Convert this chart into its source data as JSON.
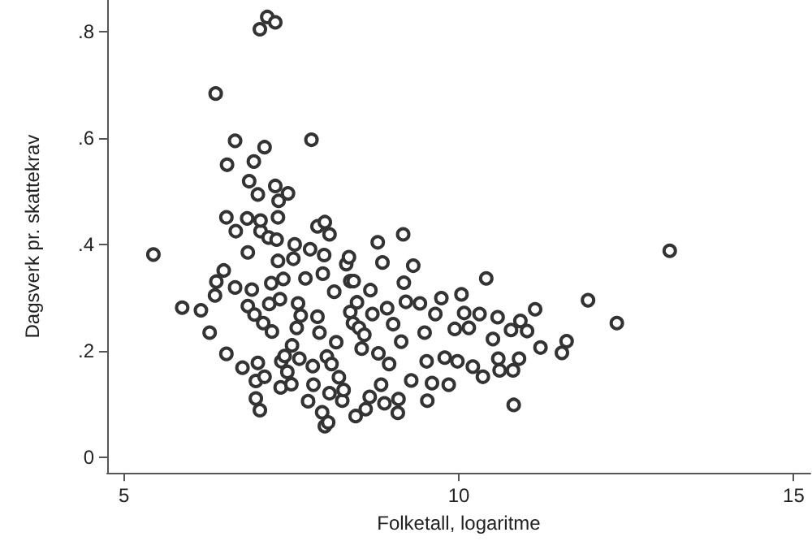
{
  "chart_data": {
    "type": "scatter",
    "xlabel": "Folketall, logaritme",
    "ylabel": "Dagsverk pr. skattekrav",
    "marker": "circle",
    "grid": false,
    "xlim": [
      4.75,
      15.25
    ],
    "xticks": [
      5,
      10,
      15
    ],
    "ylim": [
      -0.03,
      0.86
    ],
    "yticks": [
      {
        "value": 0,
        "label": "0"
      },
      {
        "value": 0.2,
        "label": ".2"
      },
      {
        "value": 0.4,
        "label": ".4"
      },
      {
        "value": 0.6,
        "label": ".6"
      },
      {
        "value": 0.8,
        "label": ".8"
      }
    ],
    "series": [
      {
        "color": "#333333",
        "x": [
          5.44,
          5.87,
          6.15,
          6.28,
          6.36,
          6.38,
          6.37,
          6.49,
          6.53,
          6.54,
          6.53,
          6.66,
          6.67,
          6.66,
          6.77,
          6.84,
          6.85,
          6.87,
          6.85,
          6.91,
          6.94,
          6.95,
          6.97,
          6.97,
          7.0,
          7.0,
          7.03,
          7.04,
          7.03,
          7.04,
          7.08,
          7.1,
          7.1,
          7.14,
          7.16,
          7.17,
          7.2,
          7.21,
          7.26,
          7.26,
          7.28,
          7.3,
          7.31,
          7.3,
          7.33,
          7.34,
          7.35,
          7.38,
          7.4,
          7.45,
          7.44,
          7.5,
          7.51,
          7.53,
          7.55,
          7.58,
          7.6,
          7.62,
          7.64,
          7.71,
          7.75,
          7.78,
          7.8,
          7.82,
          7.83,
          7.89,
          7.89,
          7.92,
          7.96,
          7.97,
          7.99,
          8.0,
          8.0,
          8.03,
          8.05,
          8.07,
          8.07,
          8.1,
          8.14,
          8.17,
          8.21,
          8.26,
          8.28,
          8.32,
          8.36,
          8.38,
          8.38,
          8.42,
          8.43,
          8.46,
          8.48,
          8.51,
          8.55,
          8.59,
          8.61,
          8.67,
          8.68,
          8.71,
          8.79,
          8.8,
          8.84,
          8.86,
          8.89,
          8.93,
          8.96,
          9.02,
          9.09,
          9.1,
          9.14,
          9.17,
          9.18,
          9.21,
          9.29,
          9.32,
          9.42,
          9.49,
          9.52,
          9.53,
          9.6,
          9.65,
          9.74,
          9.79,
          9.85,
          9.94,
          9.98,
          10.04,
          10.08,
          10.15,
          10.21,
          10.31,
          10.36,
          10.41,
          10.51,
          10.58,
          10.59,
          10.61,
          10.78,
          10.81,
          10.82,
          10.9,
          10.92,
          11.02,
          11.14,
          11.22,
          11.54,
          11.61,
          11.93,
          12.36,
          13.15
        ],
        "values": [
          0.381,
          0.281,
          0.276,
          0.234,
          0.304,
          0.33,
          0.684,
          0.351,
          0.194,
          0.55,
          0.451,
          0.595,
          0.425,
          0.319,
          0.168,
          0.449,
          0.385,
          0.519,
          0.284,
          0.315,
          0.556,
          0.268,
          0.143,
          0.11,
          0.494,
          0.177,
          0.805,
          0.425,
          0.088,
          0.445,
          0.252,
          0.583,
          0.151,
          0.828,
          0.413,
          0.288,
          0.327,
          0.236,
          0.818,
          0.51,
          0.409,
          0.369,
          0.482,
          0.451,
          0.297,
          0.131,
          0.18,
          0.335,
          0.19,
          0.496,
          0.16,
          0.137,
          0.21,
          0.373,
          0.4,
          0.243,
          0.289,
          0.185,
          0.266,
          0.336,
          0.105,
          0.391,
          0.597,
          0.171,
          0.136,
          0.434,
          0.264,
          0.234,
          0.084,
          0.345,
          0.38,
          0.442,
          0.058,
          0.189,
          0.065,
          0.419,
          0.12,
          0.175,
          0.311,
          0.216,
          0.15,
          0.106,
          0.126,
          0.363,
          0.376,
          0.331,
          0.273,
          0.252,
          0.331,
          0.077,
          0.291,
          0.243,
          0.204,
          0.23,
          0.09,
          0.113,
          0.314,
          0.269,
          0.404,
          0.195,
          0.136,
          0.366,
          0.101,
          0.28,
          0.175,
          0.25,
          0.083,
          0.109,
          0.217,
          0.419,
          0.328,
          0.292,
          0.144,
          0.36,
          0.289,
          0.234,
          0.18,
          0.106,
          0.139,
          0.269,
          0.299,
          0.187,
          0.136,
          0.241,
          0.18,
          0.306,
          0.271,
          0.243,
          0.17,
          0.269,
          0.151,
          0.336,
          0.222,
          0.263,
          0.185,
          0.163,
          0.239,
          0.163,
          0.098,
          0.185,
          0.256,
          0.237,
          0.278,
          0.206,
          0.196,
          0.218,
          0.295,
          0.252,
          0.388
        ]
      }
    ]
  }
}
